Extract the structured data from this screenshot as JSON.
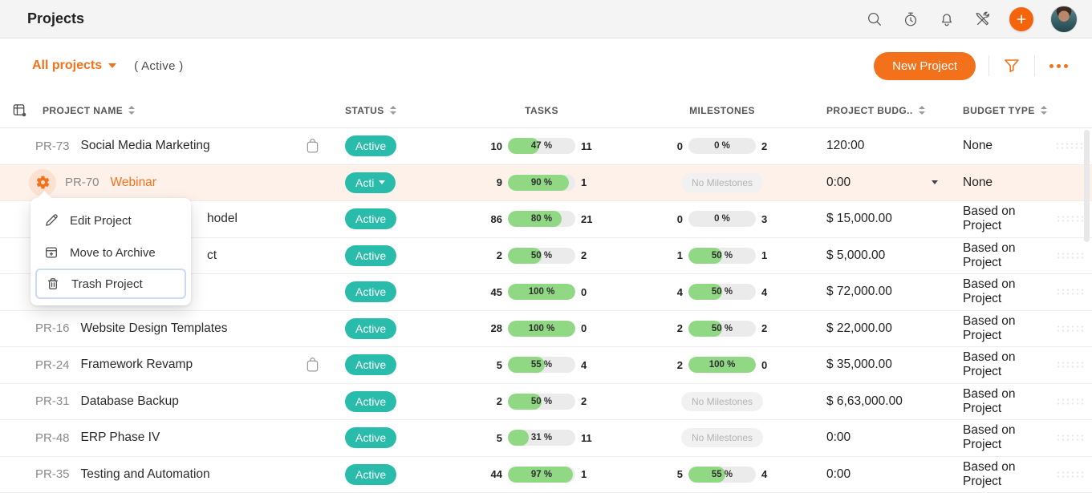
{
  "topbar": {
    "title": "Projects",
    "icons": [
      {
        "name": "search-icon"
      },
      {
        "name": "timer-icon"
      },
      {
        "name": "notifications-bell-icon"
      },
      {
        "name": "tools-icon"
      },
      {
        "name": "add-plus-button"
      },
      {
        "name": "user-avatar"
      }
    ]
  },
  "toolbar": {
    "projects_filter": "All projects",
    "scope": "( Active )",
    "new_project": "New Project",
    "filter_icon": "funnel-icon",
    "more_icon": "ellipsis-icon"
  },
  "columns": {
    "name": "PROJECT NAME",
    "status": "STATUS",
    "tasks": "TASKS",
    "milestones": "MILESTONES",
    "budget": "PROJECT BUDG..",
    "budget_type": "BUDGET TYPE"
  },
  "context_menu": {
    "items": [
      {
        "icon": "pencil-icon",
        "label": "Edit Project",
        "focused": false
      },
      {
        "icon": "archive-icon",
        "label": "Move to Archive",
        "focused": false
      },
      {
        "icon": "trash-icon",
        "label": "Trash Project",
        "focused": true
      }
    ]
  },
  "rows": [
    {
      "code": "PR-73",
      "name": "Social Media Marketing",
      "clipboard_icon": true,
      "status": "Active",
      "tasks": {
        "open": 10,
        "pct": 47,
        "label": "47 %",
        "closed": 11
      },
      "milestones": {
        "open": 0,
        "pct": 0,
        "label": "0 %",
        "closed": 2
      },
      "budget": "120:00",
      "budget_type": "None"
    },
    {
      "code": "PR-70",
      "name": "Webinar",
      "orange_name": true,
      "gear_icon": true,
      "highlighted": true,
      "status": "Acti",
      "status_caret": true,
      "tasks": {
        "open": 9,
        "pct": 90,
        "label": "90 %",
        "closed": 1
      },
      "milestones": {
        "none": true,
        "label": "No Milestones"
      },
      "budget": "0:00",
      "budget_caret": true,
      "budget_type": "None"
    },
    {
      "code": "",
      "name": "hodel",
      "obscured": true,
      "status": "Active",
      "tasks": {
        "open": 86,
        "pct": 80,
        "label": "80 %",
        "closed": 21
      },
      "milestones": {
        "open": 0,
        "pct": 0,
        "label": "0 %",
        "closed": 3
      },
      "budget": "$ 15,000.00",
      "budget_type": "Based on Project"
    },
    {
      "code": "",
      "name": "ct",
      "obscured": true,
      "status": "Active",
      "tasks": {
        "open": 2,
        "pct": 50,
        "label": "50 %",
        "closed": 2
      },
      "milestones": {
        "open": 1,
        "pct": 50,
        "label": "50 %",
        "closed": 1
      },
      "budget": "$ 5,000.00",
      "budget_type": "Based on Project"
    },
    {
      "code": "",
      "name": "",
      "obscured": true,
      "status": "Active",
      "tasks": {
        "open": 45,
        "pct": 100,
        "label": "100 %",
        "closed": 0
      },
      "milestones": {
        "open": 4,
        "pct": 50,
        "label": "50 %",
        "closed": 4
      },
      "budget": "$ 72,000.00",
      "budget_type": "Based on Project"
    },
    {
      "code": "PR-16",
      "name": "Website Design Templates",
      "status": "Active",
      "tasks": {
        "open": 28,
        "pct": 100,
        "label": "100 %",
        "closed": 0
      },
      "milestones": {
        "open": 2,
        "pct": 50,
        "label": "50 %",
        "closed": 2
      },
      "budget": "$ 22,000.00",
      "budget_type": "Based on Project"
    },
    {
      "code": "PR-24",
      "name": "Framework Revamp",
      "clipboard_icon": true,
      "status": "Active",
      "tasks": {
        "open": 5,
        "pct": 55,
        "label": "55 %",
        "closed": 4
      },
      "milestones": {
        "open": 2,
        "pct": 100,
        "label": "100 %",
        "closed": 0
      },
      "budget": "$ 35,000.00",
      "budget_type": "Based on Project"
    },
    {
      "code": "PR-31",
      "name": "Database Backup",
      "status": "Active",
      "tasks": {
        "open": 2,
        "pct": 50,
        "label": "50 %",
        "closed": 2
      },
      "milestones": {
        "none": true,
        "label": "No Milestones"
      },
      "budget": "$ 6,63,000.00",
      "budget_type": "Based on Project"
    },
    {
      "code": "PR-48",
      "name": "ERP Phase IV",
      "status": "Active",
      "tasks": {
        "open": 5,
        "pct": 31,
        "label": "31 %",
        "closed": 11
      },
      "milestones": {
        "none": true,
        "label": "No Milestones"
      },
      "budget": "0:00",
      "budget_type": "Based on Project"
    },
    {
      "code": "PR-35",
      "name": "Testing and Automation",
      "status": "Active",
      "tasks": {
        "open": 44,
        "pct": 97,
        "label": "97 %",
        "closed": 1
      },
      "milestones": {
        "open": 5,
        "pct": 55,
        "label": "55 %",
        "closed": 4
      },
      "budget": "0:00",
      "budget_type": "Based on Project"
    }
  ],
  "colors": {
    "accent_orange": "#f4711c",
    "add_button_orange": "#f4640d",
    "status_teal": "#2abcab",
    "progress_green": "#90d884",
    "row_highlight": "#fdf1ea"
  }
}
